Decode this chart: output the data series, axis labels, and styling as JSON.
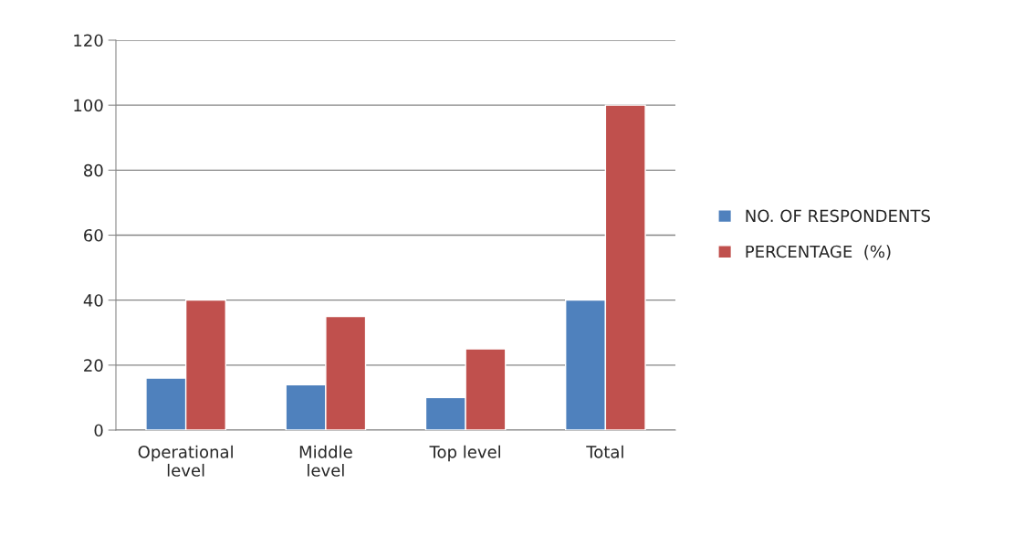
{
  "chart_data": {
    "type": "bar",
    "categories": [
      "Operational\nlevel",
      "Middle\nlevel",
      "Top level",
      "Total"
    ],
    "series": [
      {
        "name": "NO. OF RESPONDENTS",
        "color": "#4f81bd",
        "values": [
          16,
          14,
          10,
          40
        ]
      },
      {
        "name": "PERCENTAGE  (%)",
        "color": "#c0504d",
        "values": [
          40,
          35,
          25,
          100
        ]
      }
    ],
    "ylim": [
      0,
      120
    ],
    "yticks": [
      0,
      20,
      40,
      60,
      80,
      100,
      120
    ],
    "grid": "y",
    "legend": "right"
  }
}
